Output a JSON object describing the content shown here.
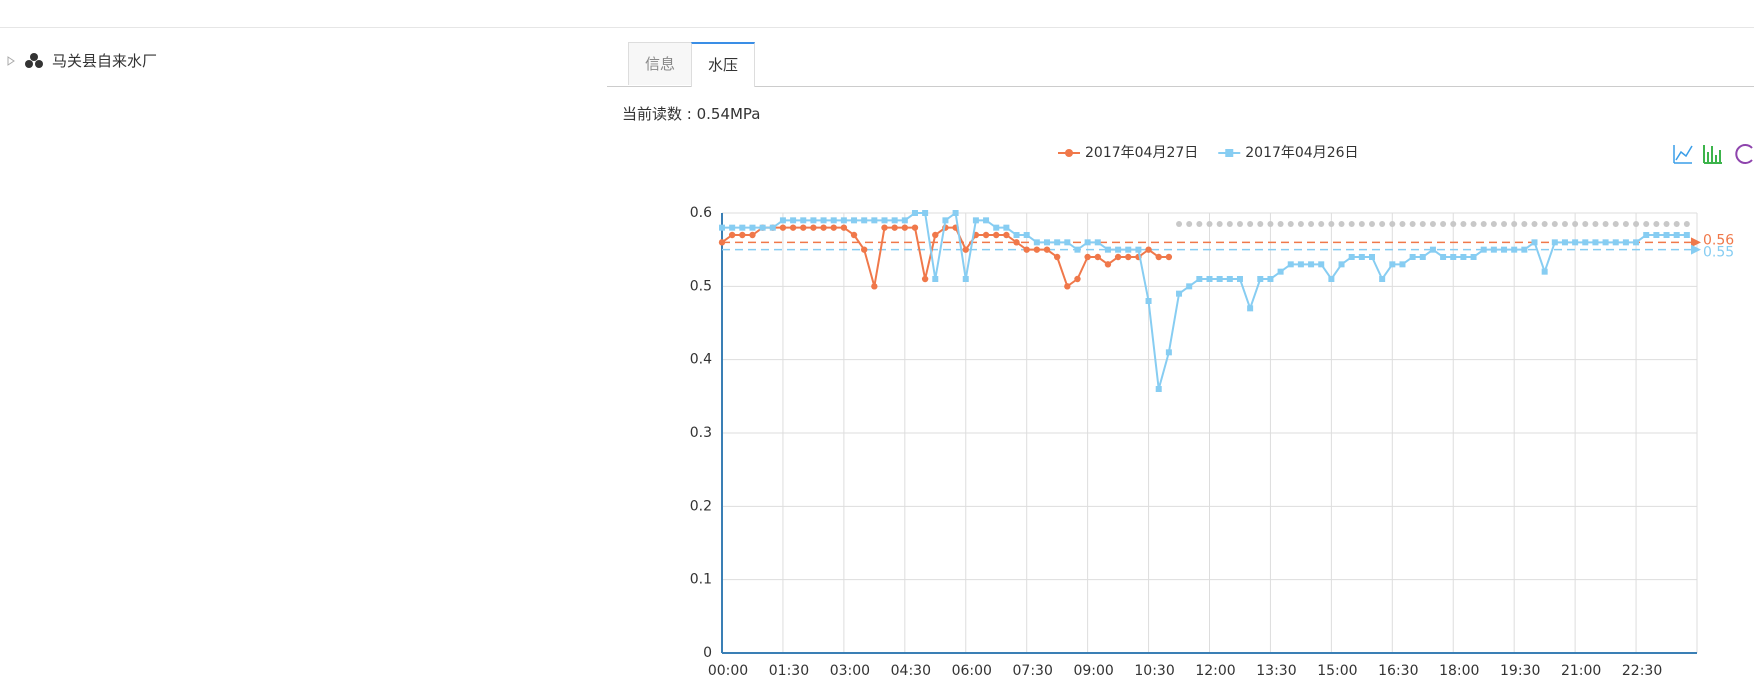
{
  "tree": {
    "label": "马关县自来水厂"
  },
  "tabs": [
    "信息",
    "水压"
  ],
  "reading": "当前读数 : 0.54MPa",
  "chart_data": {
    "type": "line",
    "categories": [
      "00:00",
      null,
      null,
      null,
      null,
      null,
      "01:30",
      null,
      null,
      null,
      null,
      null,
      "03:00",
      null,
      null,
      null,
      null,
      null,
      "04:30",
      null,
      null,
      null,
      null,
      null,
      "06:00",
      null,
      null,
      null,
      null,
      null,
      "07:30",
      null,
      null,
      null,
      null,
      null,
      "09:00",
      null,
      null,
      null,
      null,
      null,
      "10:30",
      null,
      null,
      null,
      null,
      null,
      "12:00",
      null,
      null,
      null,
      null,
      null,
      "13:30",
      null,
      null,
      null,
      null,
      null,
      "15:00",
      null,
      null,
      null,
      null,
      null,
      "16:30",
      null,
      null,
      null,
      null,
      null,
      "18:00",
      null,
      null,
      null,
      null,
      null,
      "19:30",
      null,
      null,
      null,
      null,
      null,
      "21:00",
      null,
      null,
      null,
      null,
      null,
      "22:30",
      null,
      null,
      null,
      null,
      null
    ],
    "series": [
      {
        "name": "2017年04月27日",
        "color": "#f0784a",
        "marker": "circle",
        "values": [
          0.56,
          0.57,
          0.57,
          0.57,
          0.58,
          0.58,
          0.58,
          0.58,
          0.58,
          0.58,
          0.58,
          0.58,
          0.58,
          0.57,
          0.55,
          0.5,
          0.58,
          0.58,
          0.58,
          0.58,
          0.51,
          0.57,
          0.58,
          0.58,
          0.55,
          0.57,
          0.57,
          0.57,
          0.57,
          0.56,
          0.55,
          0.55,
          0.55,
          0.54,
          0.5,
          0.51,
          0.54,
          0.54,
          0.53,
          0.54,
          0.54,
          0.54,
          0.55,
          0.54,
          0.54,
          null,
          null,
          null,
          null,
          null,
          null,
          null,
          null,
          null,
          null,
          null,
          null,
          null,
          null,
          null,
          null,
          null,
          null,
          null,
          null,
          null,
          null,
          null,
          null,
          null,
          null,
          null,
          null,
          null,
          null,
          null,
          null,
          null,
          null,
          null,
          null,
          null,
          null,
          null,
          null,
          null,
          null,
          null,
          null,
          null,
          null,
          null,
          null,
          null,
          null,
          null
        ]
      },
      {
        "name": "2017年04月26日",
        "color": "#87cdf2",
        "marker": "square",
        "values": [
          0.58,
          0.58,
          0.58,
          0.58,
          0.58,
          0.58,
          0.59,
          0.59,
          0.59,
          0.59,
          0.59,
          0.59,
          0.59,
          0.59,
          0.59,
          0.59,
          0.59,
          0.59,
          0.59,
          0.6,
          0.6,
          0.51,
          0.59,
          0.6,
          0.51,
          0.59,
          0.59,
          0.58,
          0.58,
          0.57,
          0.57,
          0.56,
          0.56,
          0.56,
          0.56,
          0.55,
          0.56,
          0.56,
          0.55,
          0.55,
          0.55,
          0.55,
          0.48,
          0.36,
          0.41,
          0.49,
          0.5,
          0.51,
          0.51,
          0.51,
          0.51,
          0.51,
          0.47,
          0.51,
          0.51,
          0.52,
          0.53,
          0.53,
          0.53,
          0.53,
          0.51,
          0.53,
          0.54,
          0.54,
          0.54,
          0.51,
          0.53,
          0.53,
          0.54,
          0.54,
          0.55,
          0.54,
          0.54,
          0.54,
          0.54,
          0.55,
          0.55,
          0.55,
          0.55,
          0.55,
          0.56,
          0.52,
          0.56,
          0.56,
          0.56,
          0.56,
          0.56,
          0.56,
          0.56,
          0.56,
          0.56,
          0.57,
          0.57,
          0.57,
          0.57,
          0.57
        ]
      },
      {
        "color": "#c8c8c8",
        "marker": "dot",
        "values": [
          null,
          null,
          null,
          null,
          null,
          null,
          null,
          null,
          null,
          null,
          null,
          null,
          null,
          null,
          null,
          null,
          null,
          null,
          null,
          null,
          null,
          null,
          null,
          null,
          null,
          null,
          null,
          null,
          null,
          null,
          null,
          null,
          null,
          null,
          null,
          null,
          null,
          null,
          null,
          null,
          null,
          null,
          null,
          null,
          null,
          0.585,
          0.585,
          0.585,
          0.585,
          0.585,
          0.585,
          0.585,
          0.585,
          0.585,
          0.585,
          0.585,
          0.585,
          0.585,
          0.585,
          0.585,
          0.585,
          0.585,
          0.585,
          0.585,
          0.585,
          0.585,
          0.585,
          0.585,
          0.585,
          0.585,
          0.585,
          0.585,
          0.585,
          0.585,
          0.585,
          0.585,
          0.585,
          0.585,
          0.585,
          0.585,
          0.585,
          0.585,
          0.585,
          0.585,
          0.585,
          0.585,
          0.585,
          0.585,
          0.585,
          0.585,
          0.585,
          0.585,
          0.585,
          0.585,
          0.585,
          0.585
        ]
      }
    ],
    "mark_lines": [
      {
        "value": 0.56,
        "color": "#f0784a"
      },
      {
        "value": 0.55,
        "color": "#87cdf2"
      }
    ],
    "ylim": [
      0,
      0.6
    ],
    "yticks": [
      0,
      0.1,
      0.2,
      0.3,
      0.4,
      0.5,
      0.6
    ],
    "grid": true
  }
}
